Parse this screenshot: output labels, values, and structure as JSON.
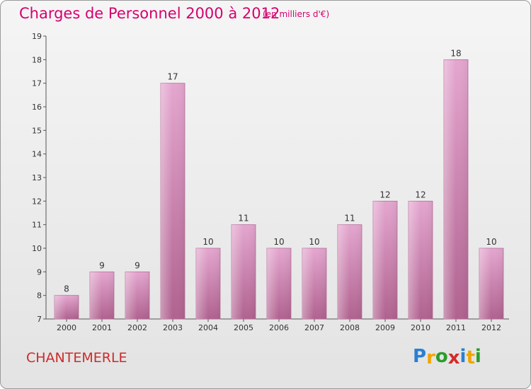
{
  "chart_data": {
    "type": "bar",
    "title": "Charges de Personnel 2000 à 2012",
    "subtitle": "(en milliers d'€)",
    "categories": [
      "2000",
      "2001",
      "2002",
      "2003",
      "2004",
      "2005",
      "2006",
      "2007",
      "2008",
      "2009",
      "2010",
      "2011",
      "2012"
    ],
    "values": [
      8,
      9,
      9,
      17,
      10,
      11,
      10,
      10,
      11,
      12,
      12,
      18,
      10
    ],
    "ylim": [
      7,
      19
    ],
    "yticks": [
      7,
      8,
      9,
      10,
      11,
      12,
      13,
      14,
      15,
      16,
      17,
      18,
      19
    ],
    "grid": false,
    "bar_color": "#d99bc4"
  },
  "commune": "CHANTEMERLE",
  "logo": {
    "letters": [
      "P",
      "r",
      "o",
      "x",
      "i",
      "t",
      "i"
    ],
    "colors": [
      "#2a7fd4",
      "#f0a500",
      "#2a9d2a",
      "#d62a2a",
      "#2a7fd4",
      "#f0a500",
      "#2a9d2a"
    ]
  }
}
